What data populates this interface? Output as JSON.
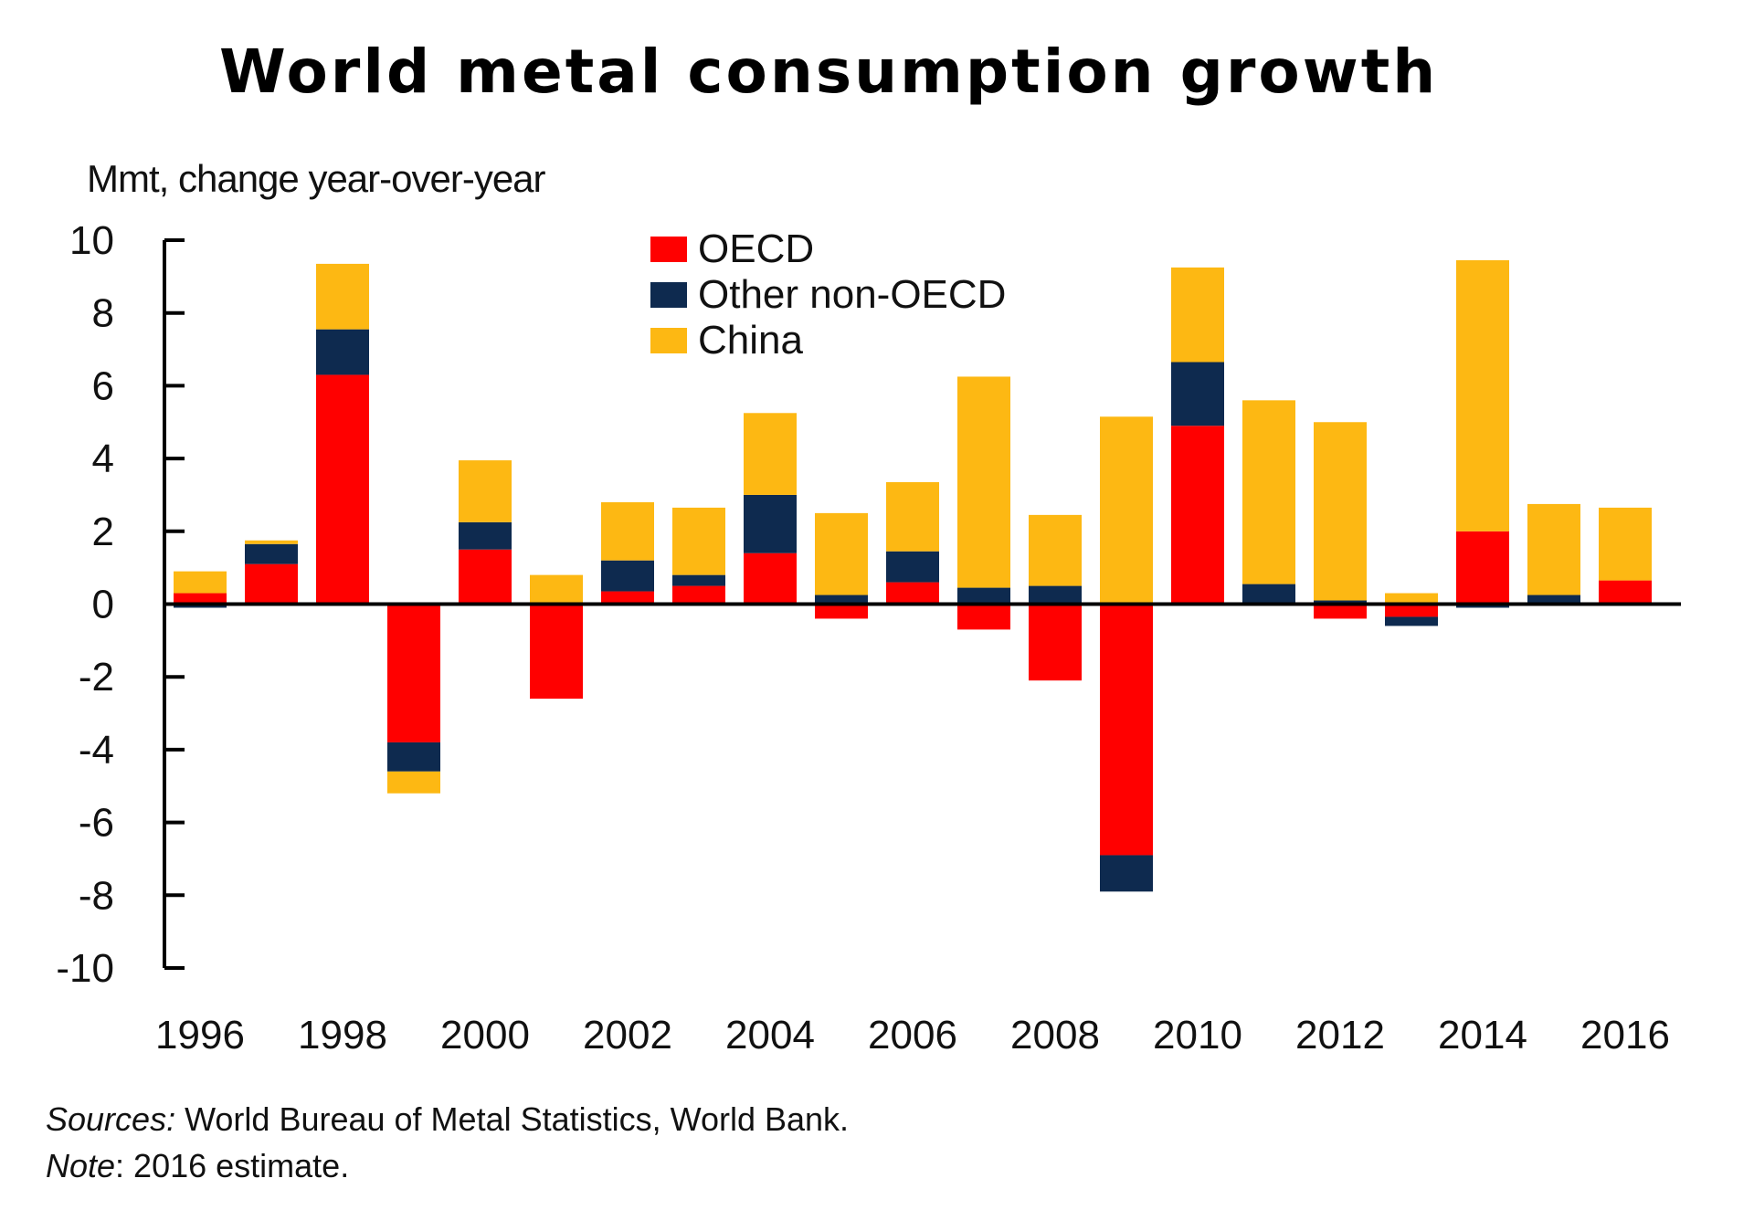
{
  "chart_data": {
    "type": "bar",
    "stacked": true,
    "title": "World metal consumption growth",
    "ylabel": "Mmt, change year-over-year",
    "xlabel": "",
    "ylim": [
      -10,
      10
    ],
    "yticks": [
      10,
      8,
      6,
      4,
      2,
      0,
      -2,
      -4,
      -6,
      -8,
      -10
    ],
    "categories": [
      "1996",
      "1997",
      "1998",
      "1999",
      "2000",
      "2001",
      "2002",
      "2003",
      "2004",
      "2005",
      "2006",
      "2007",
      "2008",
      "2009",
      "2010",
      "2011",
      "2012",
      "2013",
      "2014",
      "2015",
      "2016"
    ],
    "xtick_labels": [
      "1996",
      "1998",
      "2000",
      "2002",
      "2004",
      "2006",
      "2008",
      "2010",
      "2012",
      "2014",
      "2016"
    ],
    "series": [
      {
        "name": "OECD",
        "color": "#ff0000",
        "values": [
          0.3,
          1.1,
          6.3,
          -3.8,
          1.5,
          -2.6,
          0.35,
          0.5,
          1.4,
          -0.4,
          0.6,
          -0.7,
          -2.1,
          -6.9,
          4.9,
          0.0,
          -0.4,
          -0.35,
          2.0,
          0.0,
          0.65
        ]
      },
      {
        "name": "Other non-OECD",
        "color": "#0e2a4f",
        "values": [
          -0.1,
          0.55,
          1.25,
          -0.8,
          0.75,
          0.0,
          0.85,
          0.3,
          1.6,
          0.25,
          0.85,
          0.45,
          0.5,
          -1.0,
          1.75,
          0.55,
          0.1,
          -0.25,
          -0.1,
          0.25,
          0.0
        ]
      },
      {
        "name": "China",
        "color": "#fdb813",
        "values": [
          0.6,
          0.1,
          1.8,
          -0.6,
          1.7,
          0.8,
          1.6,
          1.85,
          2.25,
          2.25,
          1.9,
          5.8,
          1.95,
          5.15,
          2.6,
          5.05,
          4.9,
          0.3,
          7.45,
          2.5,
          2.0
        ]
      }
    ],
    "legend_position": "top-center",
    "grid": false
  },
  "footer": {
    "sources_lead": "Sources:",
    "sources_text": " World Bureau of Metal Statistics, World Bank.",
    "note_lead": "Note",
    "note_text": ": 2016 estimate."
  }
}
